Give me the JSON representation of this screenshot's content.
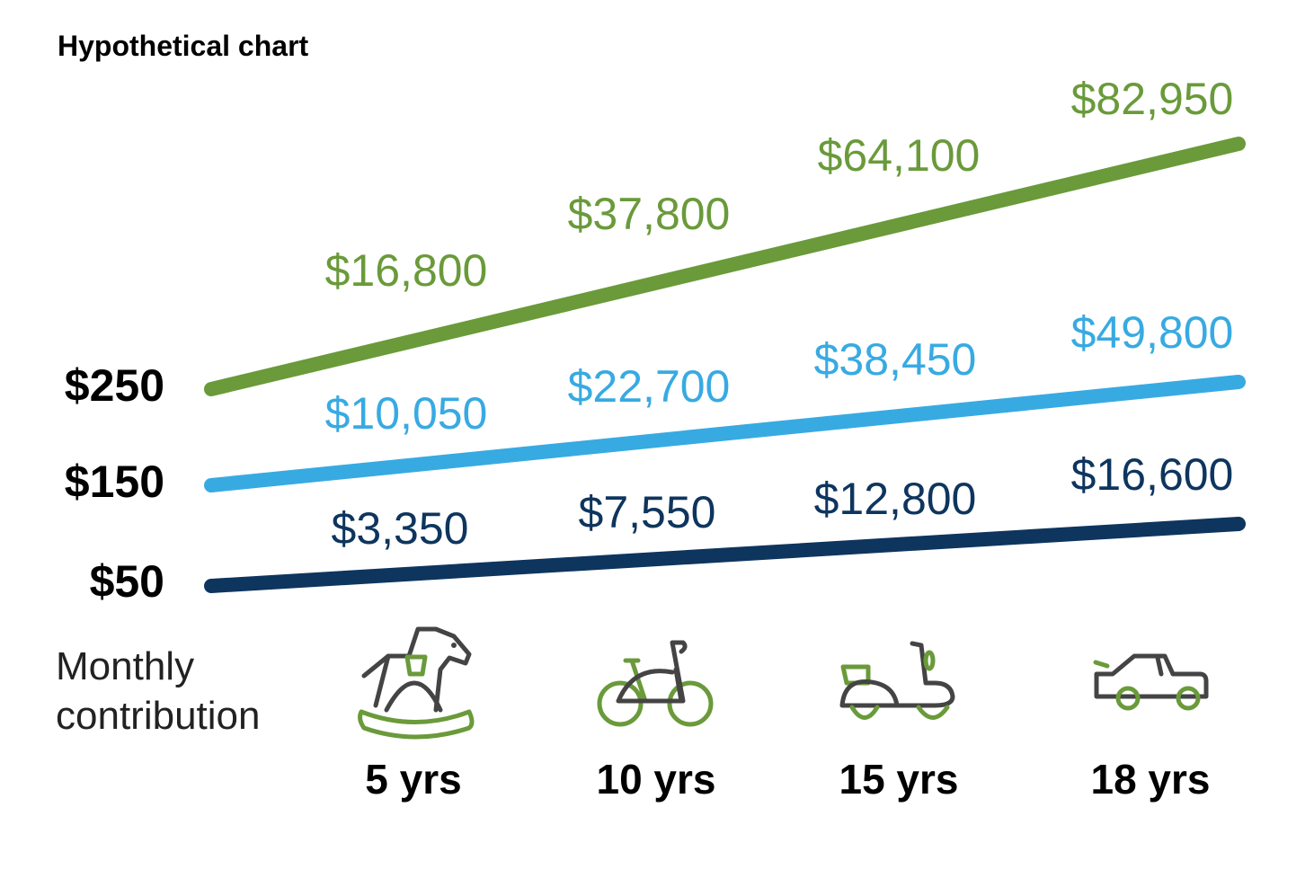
{
  "chart_data": {
    "type": "line",
    "title": "Hypothetical chart",
    "categories": [
      "5 yrs",
      "10 yrs",
      "15 yrs",
      "18 yrs"
    ],
    "legend_label": [
      "Monthly",
      "contribution"
    ],
    "series": [
      {
        "name": "$250",
        "color": "#6a9a3a",
        "values": [
          16800,
          37800,
          64100,
          82950
        ],
        "labels": [
          "$16,800",
          "$37,800",
          "$64,100",
          "$82,950"
        ]
      },
      {
        "name": "$150",
        "color": "#38aae2",
        "values": [
          10050,
          22700,
          38450,
          49800
        ],
        "labels": [
          "$10,050",
          "$22,700",
          "$38,450",
          "$49,800"
        ]
      },
      {
        "name": "$50",
        "color": "#0e355e",
        "values": [
          3350,
          7550,
          12800,
          16600
        ],
        "labels": [
          "$3,350",
          "$7,550",
          "$12,800",
          "$16,600"
        ]
      }
    ],
    "icons": [
      "rocking-horse-icon",
      "bicycle-icon",
      "scooter-icon",
      "car-icon"
    ],
    "grid": false
  }
}
